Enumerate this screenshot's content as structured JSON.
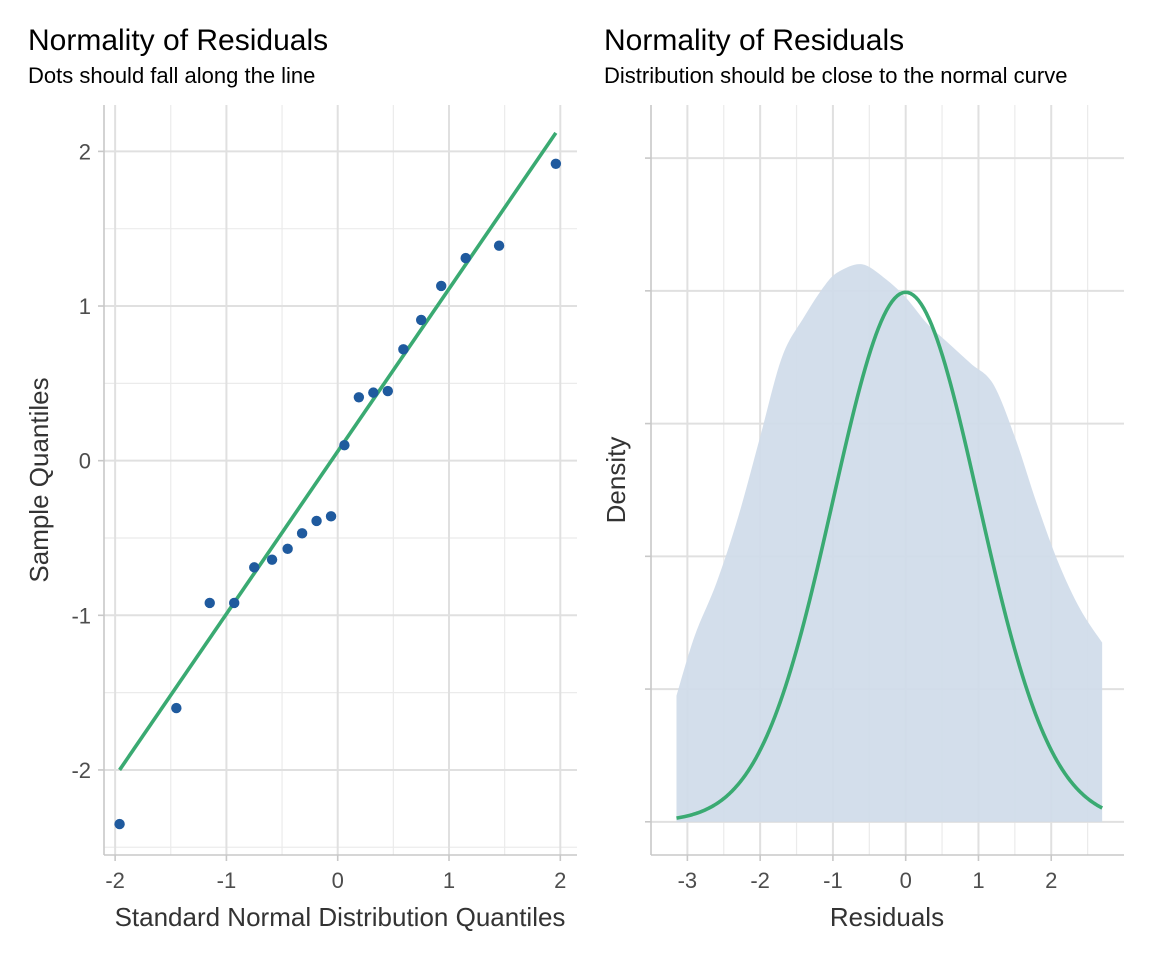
{
  "chart_data": [
    {
      "type": "scatter",
      "title": "Normality of Residuals",
      "subtitle": "Dots should fall along the line",
      "xlabel": "Standard Normal Distribution Quantiles",
      "ylabel": "Sample Quantiles",
      "xlim": [
        -2.1,
        2.15
      ],
      "ylim": [
        -2.55,
        2.3
      ],
      "x_ticks": [
        -2,
        -1,
        0,
        1,
        2
      ],
      "x_tick_labels": [
        "-2",
        "-1",
        "0",
        "1",
        "2"
      ],
      "y_ticks": [
        -2,
        -1,
        0,
        1,
        2
      ],
      "y_tick_labels": [
        "-2",
        "-1",
        "0",
        "1",
        "2"
      ],
      "grid": true,
      "point_color": "#1f5a9e",
      "line_color": "#3aaa72",
      "points": {
        "x": [
          -1.96,
          -1.45,
          -1.15,
          -0.93,
          -0.75,
          -0.59,
          -0.45,
          -0.32,
          -0.19,
          -0.06,
          0.06,
          0.19,
          0.32,
          0.45,
          0.59,
          0.75,
          0.93,
          1.15,
          1.45,
          1.96
        ],
        "y": [
          -2.35,
          -1.6,
          -0.92,
          -0.92,
          -0.69,
          -0.64,
          -0.57,
          -0.47,
          -0.39,
          -0.36,
          0.1,
          0.41,
          0.44,
          0.45,
          0.72,
          0.91,
          1.13,
          1.31,
          1.39,
          1.92
        ]
      },
      "reference_line": {
        "x": [
          -1.96,
          1.96
        ],
        "y": [
          -2.0,
          2.12
        ]
      }
    },
    {
      "type": "area",
      "title": "Normality of Residuals",
      "subtitle": "Distribution should be close to the normal curve",
      "xlabel": "Residuals",
      "ylabel": "Density",
      "xlim": [
        -3.5,
        3.0
      ],
      "ylim": [
        -0.025,
        0.54
      ],
      "x_ticks": [
        -3,
        -2,
        -1,
        0,
        1,
        2
      ],
      "x_tick_labels": [
        "-3",
        "-2",
        "-1",
        "0",
        "1",
        "2"
      ],
      "y_ticks": [
        0,
        0.1,
        0.2,
        0.3,
        0.4,
        0.5
      ],
      "y_tick_labels_shown": false,
      "grid": true,
      "fill_color": "#cfdbe9",
      "line_color": "#3aaa72",
      "density": {
        "x": [
          -3.15,
          -2.9,
          -2.6,
          -2.3,
          -2.0,
          -1.7,
          -1.4,
          -1.1,
          -0.9,
          -0.6,
          -0.3,
          0.0,
          0.3,
          0.6,
          0.9,
          1.2,
          1.5,
          1.8,
          2.1,
          2.4,
          2.7
        ],
        "y": [
          0.095,
          0.14,
          0.18,
          0.23,
          0.29,
          0.35,
          0.38,
          0.405,
          0.415,
          0.42,
          0.41,
          0.395,
          0.375,
          0.36,
          0.345,
          0.33,
          0.29,
          0.24,
          0.195,
          0.16,
          0.135
        ]
      },
      "normal_curve": {
        "mean": 0.0,
        "sd": 1.0,
        "x_range": [
          -3.15,
          2.7
        ]
      }
    }
  ]
}
